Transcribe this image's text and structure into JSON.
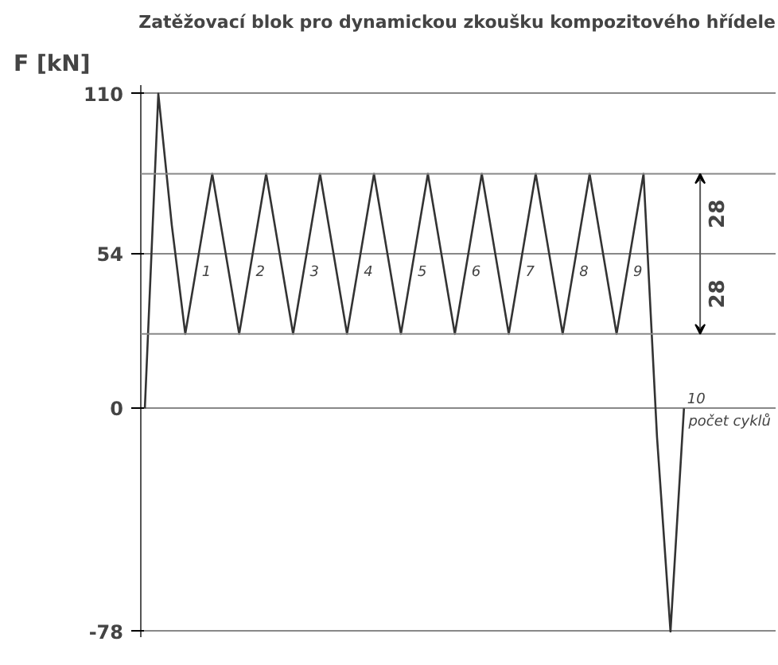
{
  "chart_data": {
    "type": "line",
    "title": "Zatěžovací blok pro dynamickou zkoušku kompozitového hřídele",
    "ylabel": "F [kN]",
    "xlabel": "počet cyklů",
    "categories": [
      null,
      null,
      null,
      null,
      null,
      null,
      null,
      null,
      null,
      null,
      null,
      null,
      null,
      null,
      null,
      null,
      null,
      null,
      null,
      null,
      null,
      null,
      null,
      null,
      null,
      null,
      null,
      null,
      null,
      null,
      null,
      null,
      null,
      null,
      null,
      null,
      null,
      null,
      null,
      null,
      null
    ],
    "series": [
      {
        "color": "#333333",
        "values": [
          0,
          110,
          64,
          26,
          54,
          82,
          54,
          26,
          54,
          82,
          54,
          26,
          54,
          82,
          54,
          26,
          54,
          82,
          54,
          26,
          54,
          82,
          54,
          26,
          54,
          82,
          54,
          26,
          54,
          82,
          54,
          26,
          54,
          82,
          54,
          26,
          54,
          82,
          -10,
          -78,
          0
        ]
      }
    ],
    "ylim": [
      -80,
      113
    ],
    "yticks": [
      110,
      54,
      0,
      -78
    ],
    "grid": "y",
    "tick_labels": "y",
    "line_style": "solid",
    "ref_lines": [
      {
        "axis": "y",
        "value": 82,
        "label": null,
        "color": "#888888"
      },
      {
        "axis": "y",
        "value": 26,
        "label": null,
        "color": "#888888"
      }
    ],
    "annotations": [
      "1",
      "2",
      "3",
      "4",
      "5",
      "6",
      "7",
      "8",
      "9",
      "10",
      "28",
      "28"
    ]
  }
}
